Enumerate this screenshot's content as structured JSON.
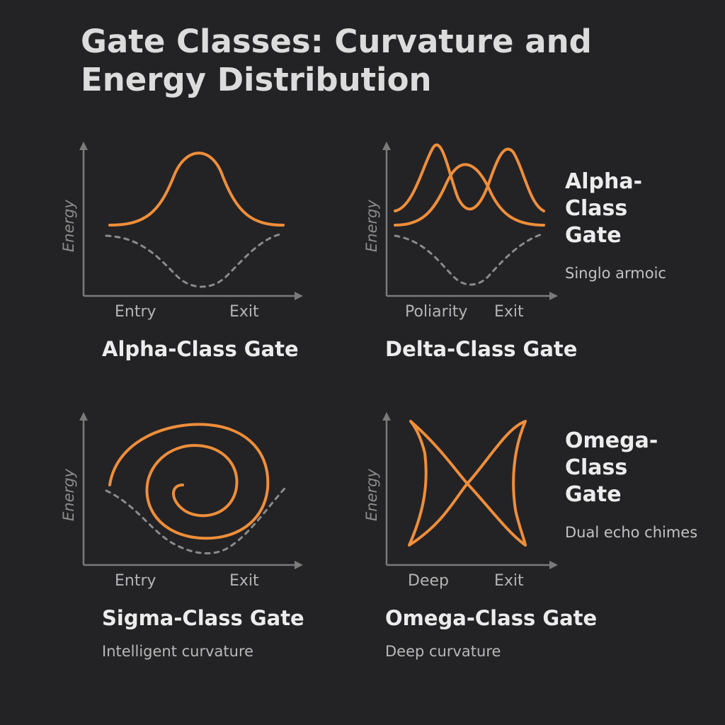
{
  "title": {
    "line1": "Gate Classes: Curvature and",
    "line2": "Energy Distribution"
  },
  "axis_label": "Energy",
  "panels": [
    {
      "id": "alpha",
      "x_ticks": [
        "Entry",
        "Exit"
      ],
      "name": "Alpha-Class Gate",
      "caption": ""
    },
    {
      "id": "delta",
      "x_ticks": [
        "Poliarity",
        "Exit"
      ],
      "name": "Delta-Class Gate",
      "caption": ""
    },
    {
      "id": "sigma",
      "x_ticks": [
        "Entry",
        "Exit"
      ],
      "name": "Sigma-Class Gate",
      "caption": "Intelligent curvature"
    },
    {
      "id": "omega",
      "x_ticks": [
        "Deep",
        "Exit"
      ],
      "name": "Omega-Class Gate",
      "caption": "Deep curvature"
    }
  ],
  "side_labels": [
    {
      "lines": [
        "Alpha-",
        "Class",
        "Gate"
      ],
      "caption": "Singlo armoic"
    },
    {
      "lines": [
        "Omega-",
        "Class",
        "Gate"
      ],
      "caption": "Dual echo chimes"
    }
  ],
  "colors": {
    "background": "#232325",
    "curve": "#ef8e3a",
    "axis": "#7a7a7a",
    "dashed": "#8a8a8a"
  }
}
